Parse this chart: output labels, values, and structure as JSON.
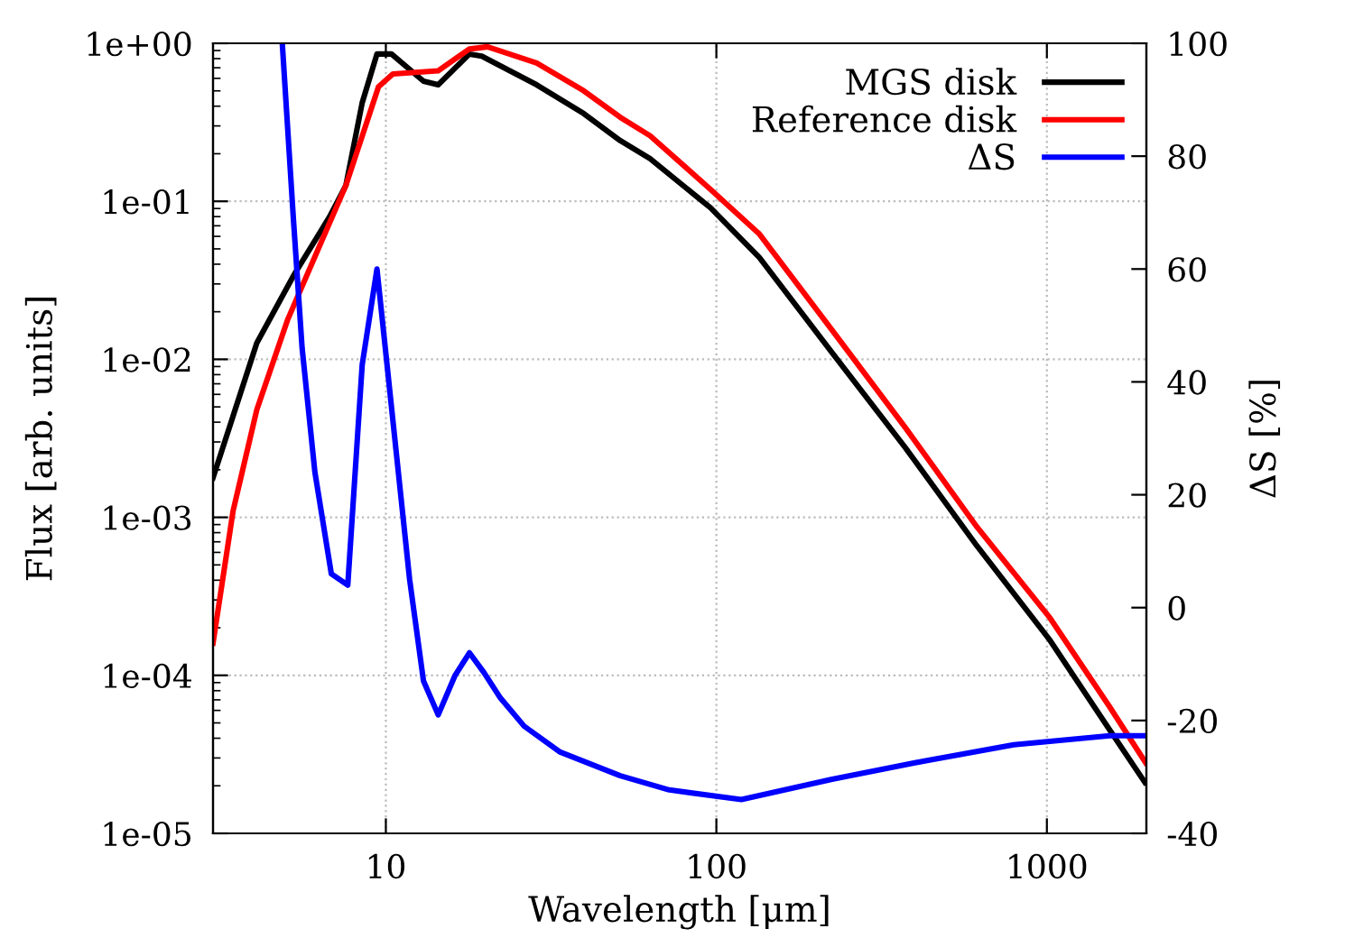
{
  "chart_data": {
    "type": "line",
    "xlabel": "Wavelength [μm]",
    "ylabel": "Flux [arb. units]",
    "y2label": "ΔS [%]",
    "log": "xy",
    "grid": true,
    "legend": "top right",
    "line_style": "solid",
    "xlim": [
      3,
      2000
    ],
    "xticks": [
      10,
      100,
      1000
    ],
    "ylim": [
      1e-05,
      1
    ],
    "yticks": [
      {
        "value": 1e-05,
        "label": "1e-05"
      },
      {
        "value": 0.0001,
        "label": "1e-04"
      },
      {
        "value": 0.001,
        "label": "1e-03"
      },
      {
        "value": 0.01,
        "label": "1e-02"
      },
      {
        "value": 0.1,
        "label": "1e-01"
      },
      {
        "value": 1,
        "label": "1e+00"
      }
    ],
    "y2lim": [
      -40,
      100
    ],
    "y2ticks": [
      -40,
      -20,
      0,
      20,
      40,
      60,
      80,
      100
    ],
    "series": [
      {
        "name": "MGS disk",
        "color": "#000000",
        "x": [
          3,
          4.07,
          5.25,
          6.76,
          7.57,
          8.48,
          9.4,
          10.4,
          13.0,
          14.4,
          17.9,
          19.5,
          28.6,
          39.7,
          51.2,
          63,
          96,
          135,
          224,
          373,
          614,
          1023,
          1550,
          1980
        ],
        "values": [
          0.00178,
          0.0127,
          0.0337,
          0.08,
          0.126,
          0.42,
          0.855,
          0.855,
          0.576,
          0.546,
          0.855,
          0.83,
          0.546,
          0.359,
          0.242,
          0.186,
          0.091,
          0.044,
          0.011,
          0.00276,
          0.00066,
          0.000166,
          4.5e-05,
          2.1e-05
        ]
      },
      {
        "name": "Reference disk",
        "color": "#ff0000",
        "x": [
          3,
          3.45,
          4.07,
          5.05,
          6.27,
          7.57,
          9.5,
          10.5,
          14.4,
          17.9,
          20.3,
          28.6,
          39.7,
          51.2,
          63,
          96,
          135,
          224,
          373,
          614,
          1023,
          1550,
          1990
        ],
        "values": [
          0.00016,
          0.0011,
          0.0048,
          0.0179,
          0.051,
          0.126,
          0.53,
          0.64,
          0.67,
          0.92,
          0.95,
          0.75,
          0.5,
          0.34,
          0.26,
          0.119,
          0.062,
          0.0153,
          0.0037,
          0.00087,
          0.00023,
          6.3e-05,
          2.8e-05
        ]
      },
      {
        "name": "ΔS",
        "color": "#0000ff",
        "axis": "y2",
        "x": [
          4.86,
          5.25,
          5.58,
          6.1,
          6.84,
          7.67,
          8.48,
          9.4,
          11.8,
          13.0,
          14.4,
          16.2,
          17.9,
          19.8,
          22.2,
          26.2,
          33.7,
          51.2,
          72,
          119,
          224,
          423,
          794,
          1550,
          1990
        ],
        "values": [
          100,
          69,
          46,
          24,
          6,
          4,
          43,
          60,
          5,
          -13,
          -19,
          -12,
          -8,
          -11.5,
          -16,
          -21,
          -25.6,
          -29.8,
          -32.3,
          -34,
          -30.4,
          -27.2,
          -24.3,
          -22.7,
          -22.7
        ]
      }
    ]
  }
}
